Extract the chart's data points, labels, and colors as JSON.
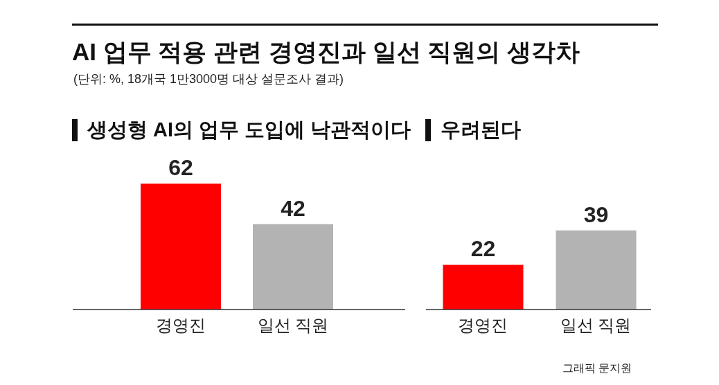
{
  "chart_data": [
    {
      "type": "bar",
      "title": "AI 업무 적용 관련 경영진과 일선 직원의 생각차",
      "subtitle": "(단위: %, 18개국 1만3000명 대상 설문조사 결과)",
      "annotations": [
        "생성형 AI의 업무 도입에 낙관적이다"
      ],
      "categories": [
        "경영진",
        "일선 직원"
      ],
      "values": [
        62,
        42
      ],
      "colors": [
        "#ff0000",
        "#b3b3b3"
      ],
      "data_labels": true
    },
    {
      "type": "bar",
      "title": "우려된다",
      "annotations": [
        "그래픽 문지원"
      ],
      "categories": [
        "경영진",
        "일선 직원"
      ],
      "values": [
        22,
        39
      ],
      "colors": [
        "#ff0000",
        "#b3b3b3"
      ],
      "data_labels": true
    }
  ]
}
